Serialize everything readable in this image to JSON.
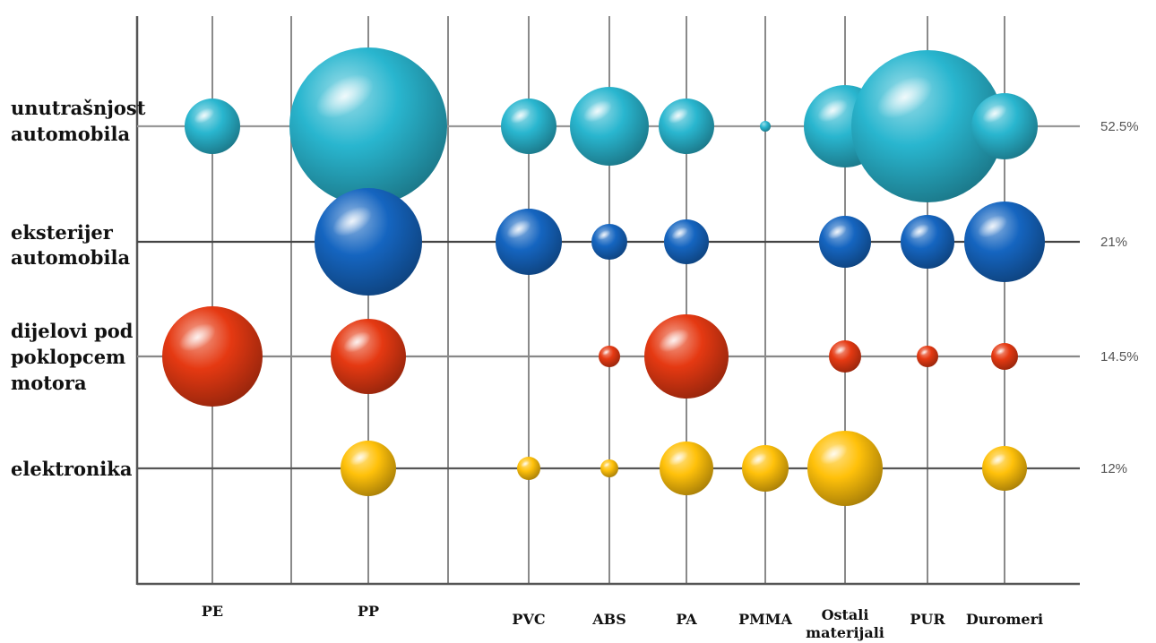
{
  "chart_data": {
    "type": "bubble",
    "title": "",
    "xlabel": "",
    "ylabel": "",
    "categories": [
      "PE",
      "PP",
      "PVC",
      "ABS",
      "PA",
      "PMMA",
      "Ostali materijali",
      "PUR",
      "Duromeri"
    ],
    "category_display": [
      [
        "PE"
      ],
      [
        "PP"
      ],
      [
        "PVC"
      ],
      [
        "ABS"
      ],
      [
        "PA"
      ],
      [
        "PMMA"
      ],
      [
        "Ostali",
        "materijali"
      ],
      [
        "PUR"
      ],
      [
        "Duromeri"
      ]
    ],
    "series": [
      {
        "id": "interior",
        "label_lines": [
          "unutrašnjost",
          "automobila"
        ],
        "share": "52.5%",
        "color": "#29b6cf",
        "values": [
          31,
          88,
          31,
          44,
          31,
          6,
          46,
          85,
          37
        ]
      },
      {
        "id": "exterior",
        "label_lines": [
          "eksterijer",
          "automobila"
        ],
        "share": "21%",
        "color": "#1565c0",
        "values": [
          0,
          60,
          37,
          20,
          25,
          0,
          29,
          30,
          45
        ]
      },
      {
        "id": "underhood",
        "label_lines": [
          "dijelovi pod",
          "poklopcem",
          "motora"
        ],
        "share": "14.5%",
        "color": "#e53912",
        "values": [
          56,
          42,
          0,
          12,
          47,
          0,
          18,
          12,
          15
        ]
      },
      {
        "id": "electronics",
        "label_lines": [
          "elektronika"
        ],
        "share": "12%",
        "color": "#ffc10a",
        "values": [
          0,
          31,
          13,
          10,
          30,
          26,
          42,
          0,
          25
        ]
      }
    ],
    "bubble_value_note": "",
    "grid": true,
    "legend": "none"
  }
}
